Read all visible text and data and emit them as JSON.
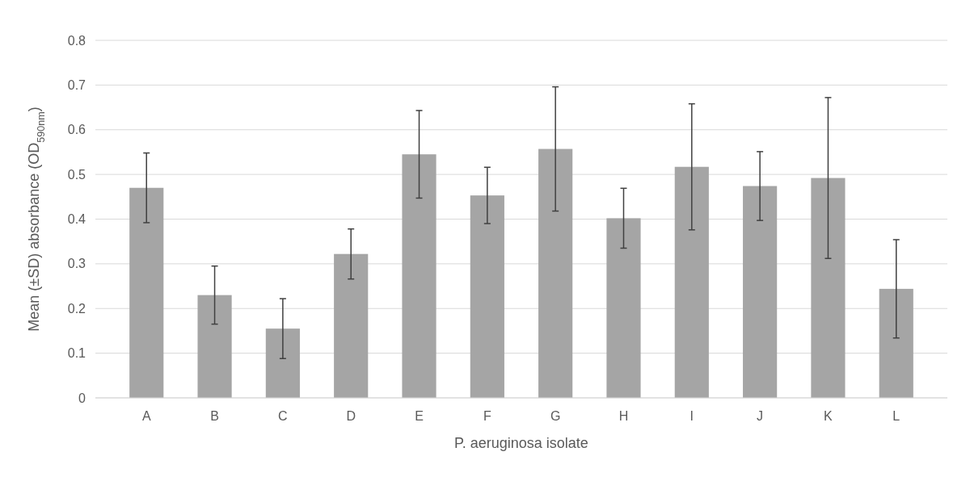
{
  "chart_data": {
    "type": "bar",
    "xlabel": "P. aeruginosa isolate",
    "ylabel": "Mean (±SD) absorbance (OD$_{590nm}$)",
    "categories": [
      "A",
      "B",
      "C",
      "D",
      "E",
      "F",
      "G",
      "H",
      "I",
      "J",
      "K",
      "L"
    ],
    "values": [
      0.47,
      0.23,
      0.155,
      0.322,
      0.545,
      0.453,
      0.557,
      0.402,
      0.517,
      0.474,
      0.492,
      0.244
    ],
    "errors": [
      0.078,
      0.065,
      0.067,
      0.056,
      0.098,
      0.063,
      0.139,
      0.067,
      0.141,
      0.077,
      0.18,
      0.11
    ],
    "color": "#a5a5a5",
    "ylim": [
      0,
      0.8
    ],
    "yticks": [
      0,
      0.1,
      0.2,
      0.3,
      0.4,
      0.5,
      0.6,
      0.7,
      0.8
    ],
    "grid": "y"
  }
}
